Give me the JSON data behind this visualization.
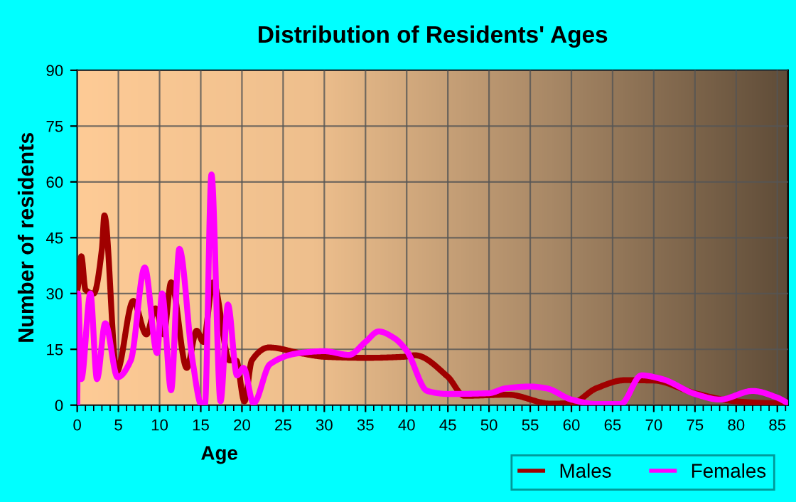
{
  "chart_data": {
    "type": "line",
    "title": "Distribution of Residents' Ages",
    "xlabel": "Age",
    "ylabel": "Number of residents",
    "xlim": [
      0,
      86.3
    ],
    "ylim": [
      0,
      90
    ],
    "xticks": [
      0,
      5,
      10,
      15,
      20,
      25,
      30,
      35,
      40,
      45,
      50,
      55,
      60,
      65,
      70,
      75,
      80,
      85
    ],
    "yticks": [
      0,
      15,
      30,
      45,
      60,
      75,
      90
    ],
    "grid": true,
    "legend": "bottom right",
    "line_style": "solid",
    "series": [
      {
        "name": "Males",
        "color": "#a00000",
        "x": [
          0,
          0.5,
          1,
          2,
          3,
          3.3,
          4.8,
          6.8,
          8.4,
          9.5,
          10.5,
          11.4,
          13.3,
          14.5,
          15.3,
          16.5,
          18.5,
          19.3,
          20.3,
          21.2,
          23.3,
          27,
          30,
          35,
          39.7,
          41,
          45,
          47,
          52.3,
          57.5,
          60,
          63,
          66.5,
          70,
          75,
          80,
          85,
          86.3
        ],
        "values": [
          31,
          40,
          31,
          30,
          42,
          51,
          9,
          28,
          19,
          26,
          19,
          33,
          10,
          20,
          17,
          33,
          12,
          12,
          1,
          12,
          15.5,
          14,
          13,
          12.7,
          13,
          13.4,
          7.6,
          2.5,
          2.8,
          0.4,
          0.5,
          4.5,
          6.7,
          6.6,
          3.2,
          1,
          0.5,
          0.5
        ]
      },
      {
        "name": "Females",
        "color": "#ff00ff",
        "x": [
          0,
          0.1,
          0.5,
          1.6,
          2.4,
          3.4,
          4.9,
          6.5,
          8.2,
          9.7,
          10.3,
          11.4,
          12.4,
          14,
          15.1,
          15.5,
          16.3,
          17.4,
          18.3,
          19.4,
          20.2,
          21.4,
          23.4,
          27,
          30,
          33,
          35,
          36.6,
          38.5,
          40,
          42.5,
          45,
          50,
          52,
          55,
          57,
          60,
          63,
          66,
          68.5,
          71,
          75,
          78,
          82,
          85,
          86.3
        ],
        "values": [
          0,
          30,
          7,
          30,
          7,
          22,
          7.5,
          12,
          37,
          14,
          30,
          4,
          42,
          12,
          0,
          0,
          62,
          1,
          27,
          8,
          10,
          0.5,
          11,
          14,
          14.5,
          13.5,
          17,
          19.8,
          18,
          14.6,
          3.8,
          3,
          3.2,
          4.5,
          5,
          4.5,
          1.5,
          0.3,
          0.3,
          8,
          7,
          3,
          1.5,
          3.8,
          2,
          0.5
        ]
      }
    ]
  }
}
